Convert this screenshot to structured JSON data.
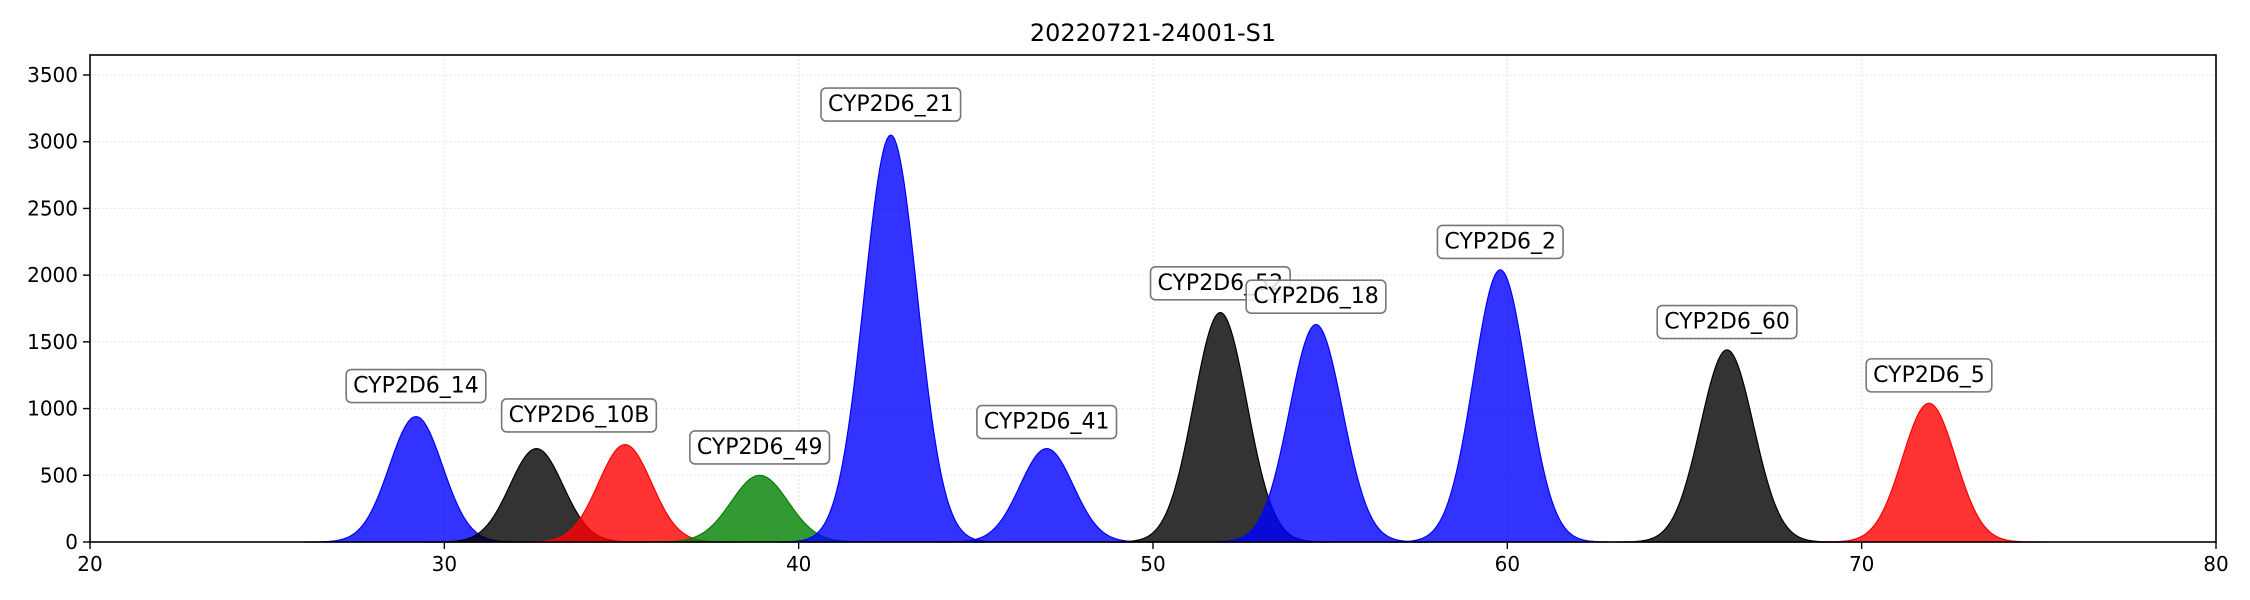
{
  "chart_data": {
    "type": "area",
    "title": "20220721-24001-S1",
    "xlabel": "",
    "ylabel": "",
    "xlim": [
      20,
      80
    ],
    "ylim": [
      0,
      3650
    ],
    "xticks": [
      20,
      30,
      40,
      50,
      60,
      70,
      80
    ],
    "yticks": [
      0,
      500,
      1000,
      1500,
      2000,
      2500,
      3000,
      3500
    ],
    "grid": true,
    "legend": "none",
    "series": [
      {
        "name": "CYP2D6_14",
        "center": 29.2,
        "height": 940,
        "sigma": 0.75,
        "color": "#0000ff"
      },
      {
        "name": "CYP2D6_10B",
        "center": 32.6,
        "height": 700,
        "sigma": 0.75,
        "color": "#000000"
      },
      {
        "name": "CYP2D6_10B",
        "center": 35.1,
        "height": 730,
        "sigma": 0.75,
        "color": "#ff0000"
      },
      {
        "name": "CYP2D6_49",
        "center": 38.9,
        "height": 500,
        "sigma": 0.8,
        "color": "#008000"
      },
      {
        "name": "CYP2D6_21",
        "center": 42.6,
        "height": 3050,
        "sigma": 0.75,
        "color": "#0000ff"
      },
      {
        "name": "CYP2D6_41",
        "center": 47.0,
        "height": 700,
        "sigma": 0.75,
        "color": "#0000ff"
      },
      {
        "name": "CYP2D6_52",
        "center": 51.9,
        "height": 1720,
        "sigma": 0.75,
        "color": "#000000"
      },
      {
        "name": "CYP2D6_18",
        "center": 54.6,
        "height": 1630,
        "sigma": 0.75,
        "color": "#0000ff"
      },
      {
        "name": "CYP2D6_2",
        "center": 59.8,
        "height": 2040,
        "sigma": 0.75,
        "color": "#0000ff"
      },
      {
        "name": "CYP2D6_60",
        "center": 66.2,
        "height": 1440,
        "sigma": 0.75,
        "color": "#000000"
      },
      {
        "name": "CYP2D6_5",
        "center": 71.9,
        "height": 1040,
        "sigma": 0.75,
        "color": "#ff0000"
      }
    ],
    "labels": [
      {
        "text": "CYP2D6_14",
        "x": 29.2,
        "y": 1180
      },
      {
        "text": "CYP2D6_10B",
        "x": 33.8,
        "y": 960
      },
      {
        "text": "CYP2D6_49",
        "x": 38.9,
        "y": 720
      },
      {
        "text": "CYP2D6_21",
        "x": 42.6,
        "y": 3290
      },
      {
        "text": "CYP2D6_41",
        "x": 47.0,
        "y": 910
      },
      {
        "text": "CYP2D6_52",
        "x": 51.9,
        "y": 1950
      },
      {
        "text": "CYP2D6_18",
        "x": 54.6,
        "y": 1850
      },
      {
        "text": "CYP2D6_2",
        "x": 59.8,
        "y": 2260
      },
      {
        "text": "CYP2D6_60",
        "x": 66.2,
        "y": 1660
      },
      {
        "text": "CYP2D6_5",
        "x": 71.9,
        "y": 1260
      }
    ]
  }
}
